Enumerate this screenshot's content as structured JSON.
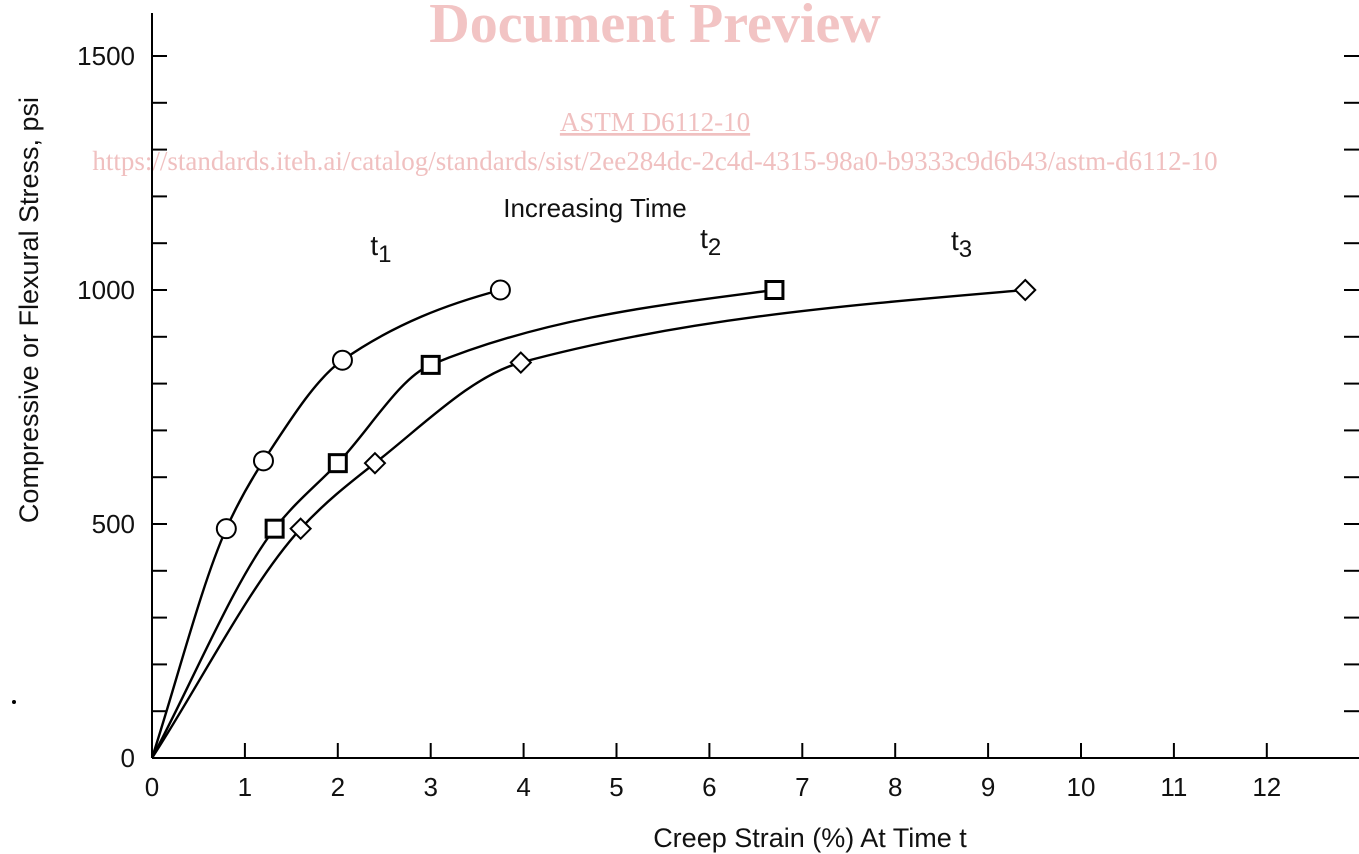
{
  "watermark": {
    "title": "Document Preview",
    "standard": "ASTM D6112-10",
    "url": "https://standards.iteh.ai/catalog/standards/sist/2ee284dc-2c4d-4315-98a0-b9333c9d6b43/astm-d6112-10"
  },
  "chart_data": {
    "type": "line",
    "title": "",
    "xlabel": "Creep Strain (%) At Time t",
    "ylabel": "Compressive or Flexural Stress, psi",
    "xlim": [
      0,
      13
    ],
    "ylim": [
      0,
      1550
    ],
    "x_ticks": [
      0,
      1,
      2,
      3,
      4,
      5,
      6,
      7,
      8,
      9,
      10,
      11,
      12
    ],
    "y_ticks": [
      0,
      500,
      1000,
      1500
    ],
    "y_minor_step": 100,
    "grid": false,
    "annotation": "Increasing Time",
    "series": [
      {
        "name": "t1",
        "label_main": "t",
        "label_sub": "1",
        "marker": "circle",
        "points": [
          [
            0.8,
            490
          ],
          [
            1.2,
            635
          ],
          [
            2.05,
            850
          ],
          [
            3.75,
            1000
          ]
        ]
      },
      {
        "name": "t2",
        "label_main": "t",
        "label_sub": "2",
        "marker": "square",
        "points": [
          [
            1.32,
            490
          ],
          [
            2.0,
            630
          ],
          [
            3.0,
            840
          ],
          [
            6.7,
            1000
          ]
        ]
      },
      {
        "name": "t3",
        "label_main": "t",
        "label_sub": "3",
        "marker": "diamond",
        "points": [
          [
            1.6,
            490
          ],
          [
            2.4,
            630
          ],
          [
            3.97,
            845
          ],
          [
            9.4,
            1000
          ]
        ]
      }
    ]
  }
}
